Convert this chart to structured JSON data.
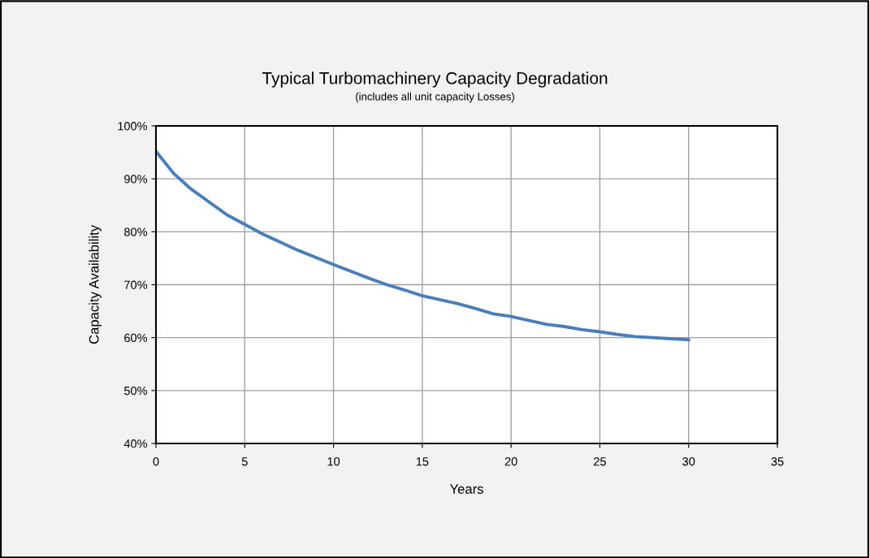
{
  "chart_data": {
    "type": "line",
    "title": "Typical Turbomachinery Capacity Degradation",
    "subtitle": "(includes all unit capacity Losses)",
    "xlabel": "Years",
    "ylabel": "Capacity Availability",
    "x": [
      0,
      1,
      2,
      4,
      6,
      8,
      10,
      12,
      13,
      14,
      15,
      17,
      18,
      19,
      20,
      22,
      23,
      24,
      25,
      26,
      27,
      29,
      30
    ],
    "series": [
      {
        "color": "#4a7ebb",
        "values": [
          95.2,
          91,
          88,
          83.2,
          79.6,
          76.5,
          73.8,
          71.2,
          70,
          69,
          67.9,
          66.4,
          65.5,
          64.5,
          64,
          62.5,
          62.1,
          61.5,
          61.1,
          60.6,
          60.2,
          59.8,
          59.6
        ]
      }
    ],
    "xlim": [
      0,
      35
    ],
    "xticks": [
      0,
      5,
      10,
      15,
      20,
      25,
      30,
      35
    ],
    "ylim": [
      40,
      100
    ],
    "yticks": [
      {
        "value": 40,
        "label": "40%"
      },
      {
        "value": 50,
        "label": "50%"
      },
      {
        "value": 60,
        "label": "60%"
      },
      {
        "value": 70,
        "label": "70%"
      },
      {
        "value": 80,
        "label": "80%"
      },
      {
        "value": 90,
        "label": "90%"
      },
      {
        "value": 100,
        "label": "100%"
      }
    ],
    "grid": true,
    "marker": "none",
    "line_style": "solid"
  }
}
